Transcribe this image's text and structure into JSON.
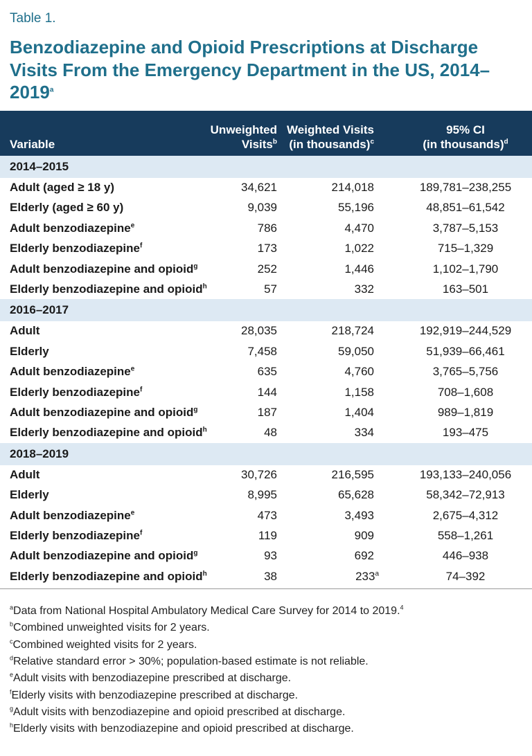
{
  "label": "Table 1.",
  "title": "Benzodiazepine and Opioid Prescriptions at Discharge Visits From the Emergency Department in the US, 2014–2019",
  "title_sup": "a",
  "table": {
    "columns": [
      {
        "lines": [
          "Variable"
        ]
      },
      {
        "lines": [
          "Unweighted",
          "Visits"
        ],
        "sup": "b"
      },
      {
        "lines": [
          "Weighted Visits",
          "(in thousands)"
        ],
        "sup": "c"
      },
      {
        "lines": [
          "95% CI",
          "(in thousands)"
        ],
        "sup": "d"
      }
    ],
    "sections": [
      {
        "label": "2014–2015",
        "rows": [
          {
            "variable": "Adult (aged ≥ 18 y)",
            "values": [
              "34,621",
              "214,018",
              "189,781–238,255"
            ]
          },
          {
            "variable": "Elderly (aged ≥ 60 y)",
            "values": [
              "9,039",
              "55,196",
              "48,851–61,542"
            ]
          },
          {
            "variable": "Adult benzodiazepine",
            "sup": "e",
            "values": [
              "786",
              "4,470",
              "3,787–5,153"
            ]
          },
          {
            "variable": "Elderly benzodiazepine",
            "sup": "f",
            "values": [
              "173",
              "1,022",
              "715–1,329"
            ]
          },
          {
            "variable": "Adult benzodiazepine and opioid",
            "sup": "g",
            "values": [
              "252",
              "1,446",
              "1,102–1,790"
            ]
          },
          {
            "variable": "Elderly benzodiazepine and opioid",
            "sup": "h",
            "values": [
              "57",
              "332",
              "163–501"
            ]
          }
        ]
      },
      {
        "label": "2016–2017",
        "rows": [
          {
            "variable": "Adult",
            "values": [
              "28,035",
              "218,724",
              "192,919–244,529"
            ]
          },
          {
            "variable": "Elderly",
            "values": [
              "7,458",
              "59,050",
              "51,939–66,461"
            ]
          },
          {
            "variable": "Adult benzodiazepine",
            "sup": "e",
            "values": [
              "635",
              "4,760",
              "3,765–5,756"
            ]
          },
          {
            "variable": "Elderly benzodiazepine",
            "sup": "f",
            "values": [
              "144",
              "1,158",
              "708–1,608"
            ]
          },
          {
            "variable": "Adult benzodiazepine and opioid",
            "sup": "g",
            "values": [
              "187",
              "1,404",
              "989–1,819"
            ]
          },
          {
            "variable": "Elderly benzodiazepine and opioid",
            "sup": "h",
            "values": [
              "48",
              "334",
              "193–475"
            ]
          }
        ]
      },
      {
        "label": "2018–2019",
        "rows": [
          {
            "variable": "Adult",
            "values": [
              "30,726",
              "216,595",
              "193,133–240,056"
            ]
          },
          {
            "variable": "Elderly",
            "values": [
              "8,995",
              "65,628",
              "58,342–72,913"
            ]
          },
          {
            "variable": "Adult benzodiazepine",
            "sup": "e",
            "values": [
              "473",
              "3,493",
              "2,675–4,312"
            ]
          },
          {
            "variable": "Elderly benzodiazepine",
            "sup": "f",
            "values": [
              "119",
              "909",
              "558–1,261"
            ]
          },
          {
            "variable": "Adult benzodiazepine and opioid",
            "sup": "g",
            "values": [
              "93",
              "692",
              "446–938"
            ]
          },
          {
            "variable": "Elderly benzodiazepine and opioid",
            "sup": "h",
            "values": [
              "38",
              {
                "text": "233",
                "sup": "a"
              },
              "74–392"
            ]
          }
        ]
      }
    ]
  },
  "footnotes": [
    {
      "mark": "a",
      "text": "Data from National Hospital Ambulatory Medical Care Survey for 2014 to 2019.",
      "sup": "4"
    },
    {
      "mark": "b",
      "text": "Combined unweighted visits for 2 years."
    },
    {
      "mark": "c",
      "text": "Combined weighted visits for 2 years."
    },
    {
      "mark": "d",
      "text": "Relative standard error > 30%; population-based estimate is not reliable."
    },
    {
      "mark": "e",
      "text": "Adult visits with benzodiazepine prescribed at discharge."
    },
    {
      "mark": "f",
      "text": "Elderly visits with benzodiazepine prescribed at discharge."
    },
    {
      "mark": "g",
      "text": "Adult visits with benzodiazepine and opioid prescribed at discharge."
    },
    {
      "mark": "h",
      "text": "Elderly visits with benzodiazepine and opioid prescribed at discharge."
    }
  ]
}
